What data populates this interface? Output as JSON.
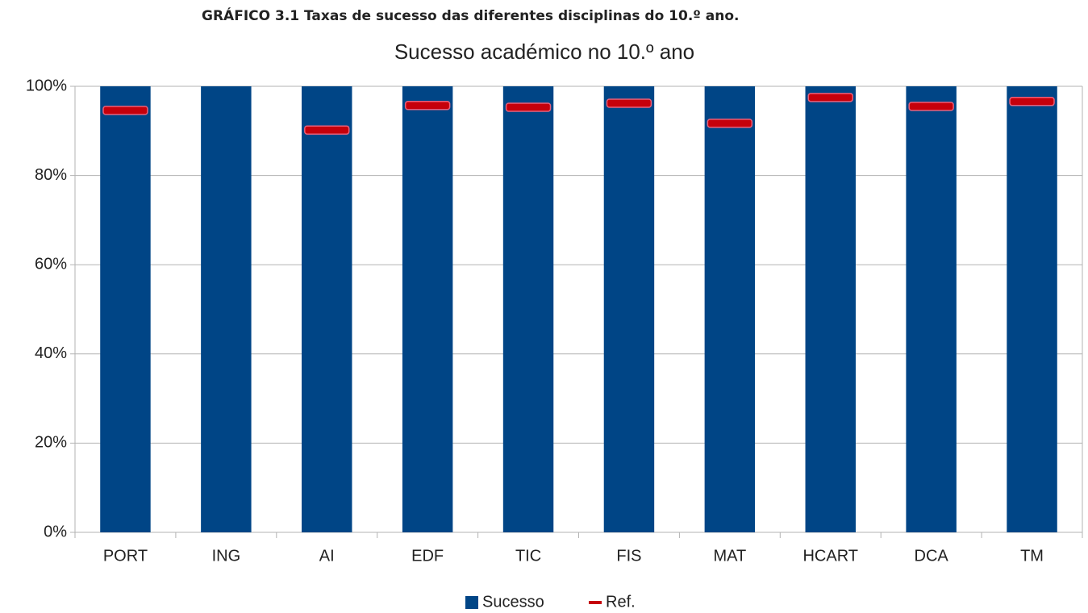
{
  "chart_data": {
    "type": "bar",
    "caption": "GRÁFICO 3.1 Taxas de sucesso das diferentes disciplinas do 10.º ano.",
    "title": "Sucesso académico no 10.º ano",
    "categories": [
      "PORT",
      "ING",
      "AI",
      "EDF",
      "TIC",
      "FIS",
      "MAT",
      "HCART",
      "DCA",
      "TM"
    ],
    "series": [
      {
        "name": "Sucesso",
        "color": "#004586",
        "values": [
          100,
          100,
          100,
          100,
          100,
          100,
          100,
          100,
          100,
          100
        ]
      },
      {
        "name": "Ref.",
        "color": "#c5000b",
        "type": "dash",
        "values": [
          94.6,
          null,
          90.2,
          95.7,
          95.3,
          96.2,
          91.7,
          97.5,
          95.5,
          96.6
        ]
      }
    ],
    "ylim": [
      0,
      100
    ],
    "yticks": [
      {
        "value": 0,
        "label": "0%"
      },
      {
        "value": 20,
        "label": "20%"
      },
      {
        "value": 40,
        "label": "40%"
      },
      {
        "value": 60,
        "label": "60%"
      },
      {
        "value": 80,
        "label": "80%"
      },
      {
        "value": 100,
        "label": "100%"
      }
    ],
    "grid": true,
    "legend": "bottom"
  }
}
